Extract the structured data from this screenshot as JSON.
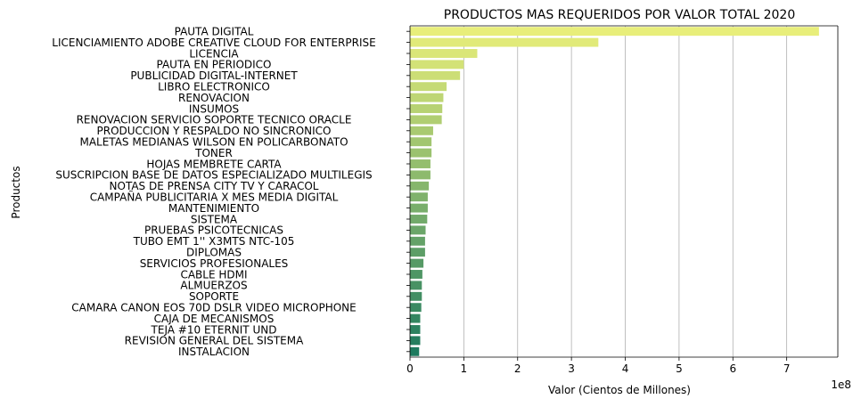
{
  "chart_data": {
    "type": "bar",
    "orientation": "horizontal",
    "title": "PRODUCTOS MAS REQUERIDOS POR VALOR TOTAL 2020",
    "xlabel": "Valor (Cientos de Millones)",
    "ylabel": "Productos",
    "x_offset_label": "1e8",
    "xlim": [
      0,
      7.95
    ],
    "xticks": [
      "0",
      "1",
      "2",
      "3",
      "4",
      "5",
      "6",
      "7"
    ],
    "grid": "x",
    "color_scale": [
      "#e8ee7a",
      "#1e7a5e"
    ],
    "categories": [
      "PAUTA DIGITAL",
      "LICENCIAMIENTO ADOBE CREATIVE CLOUD FOR ENTERPRISE",
      "LICENCIA",
      "PAUTA EN PERIODICO",
      "PUBLICIDAD DIGITAL-INTERNET",
      "LIBRO ELECTRONICO",
      "RENOVACION",
      "INSUMOS",
      "RENOVACION SERVICIO SOPORTE TECNICO ORACLE",
      "PRODUCCION Y RESPALDO NO SINCRONICO",
      "MALETAS MEDIANAS WILSON EN POLICARBONATO",
      "TONER",
      "HOJAS MEMBRETE CARTA",
      "SUSCRIPCION BASE DE DATOS ESPECIALIZADO MULTILEGIS",
      "NOTAS DE PRENSA CITY TV Y CARACOL",
      "CAMPAÑA PUBLICITARIA X MES MEDIA DIGITAL",
      "MANTENIMIENTO",
      "SISTEMA",
      "PRUEBAS PSICOTECNICAS",
      "TUBO EMT 1'' X3MTS NTC-105",
      "DIPLOMAS",
      "SERVICIOS PROFESIONALES",
      "CABLE HDMI",
      "ALMUERZOS",
      "SOPORTE",
      "CAMARA CANON EOS 70D DSLR VIDEO MICROPHONE",
      "CAJA DE MECANISMOS",
      "TEJA #10 ETERNIT UND",
      "REVISION GENERAL DEL SISTEMA",
      "INSTALACION"
    ],
    "values": [
      7.6,
      3.5,
      1.25,
      1.0,
      0.93,
      0.68,
      0.62,
      0.6,
      0.59,
      0.43,
      0.4,
      0.4,
      0.38,
      0.38,
      0.35,
      0.33,
      0.33,
      0.32,
      0.29,
      0.28,
      0.28,
      0.25,
      0.23,
      0.22,
      0.22,
      0.21,
      0.19,
      0.19,
      0.19,
      0.17
    ]
  }
}
